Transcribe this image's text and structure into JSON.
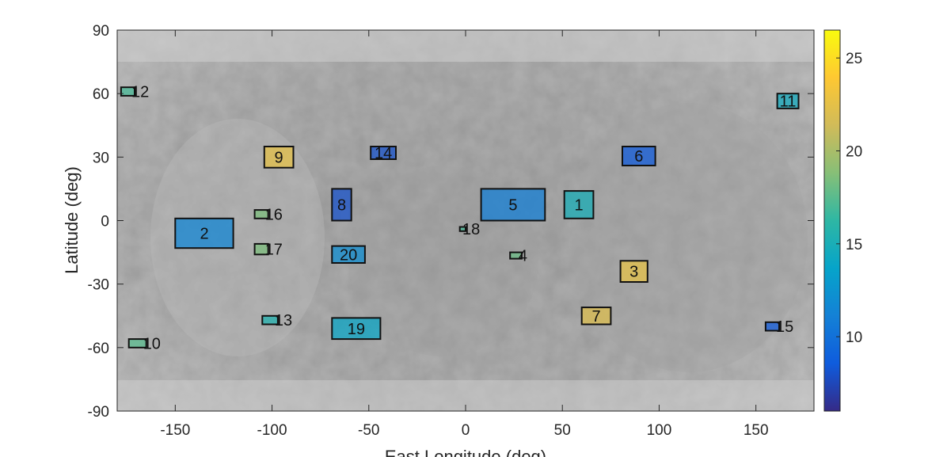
{
  "chart_data": {
    "type": "heatmap",
    "title": "",
    "xlabel": "East Longitude (deg)",
    "ylabel": "Latitude (deg)",
    "xlim": [
      -180,
      180
    ],
    "ylim": [
      -90,
      90
    ],
    "xticks": [
      -150,
      -100,
      -50,
      0,
      50,
      100,
      150
    ],
    "yticks": [
      90,
      60,
      30,
      0,
      -30,
      -60,
      -90
    ],
    "background": "grayscale planetary basemap",
    "grid": false,
    "colorbar": {
      "min": 6,
      "max": 26.5,
      "ticks": [
        10,
        15,
        20,
        25
      ],
      "colormap": "parula",
      "position": "right"
    },
    "regions": [
      {
        "label": "1",
        "lon": [
          51,
          66
        ],
        "lat": [
          1,
          14
        ],
        "value": 15.0
      },
      {
        "label": "2",
        "lon": [
          -150,
          -120
        ],
        "lat": [
          -13,
          1
        ],
        "value": 11.5
      },
      {
        "label": "3",
        "lon": [
          80,
          94
        ],
        "lat": [
          -29,
          -19
        ],
        "value": 22.5
      },
      {
        "label": "4",
        "lon": [
          23,
          29
        ],
        "lat": [
          -18,
          -15
        ],
        "value": 18.0
      },
      {
        "label": "5",
        "lon": [
          8,
          41
        ],
        "lat": [
          0,
          15
        ],
        "value": 11.0
      },
      {
        "label": "6",
        "lon": [
          81,
          98
        ],
        "lat": [
          26,
          35
        ],
        "value": 8.5
      },
      {
        "label": "7",
        "lon": [
          60,
          75
        ],
        "lat": [
          -49,
          -41
        ],
        "value": 22.0
      },
      {
        "label": "8",
        "lon": [
          -69,
          -59
        ],
        "lat": [
          0,
          15
        ],
        "value": 8.0
      },
      {
        "label": "9",
        "lon": [
          -104,
          -89
        ],
        "lat": [
          25,
          35
        ],
        "value": 22.5
      },
      {
        "label": "10",
        "lon": [
          -174,
          -165
        ],
        "lat": [
          -60,
          -56
        ],
        "value": 17.5
      },
      {
        "label": "11",
        "lon": [
          161,
          172
        ],
        "lat": [
          53,
          60
        ],
        "value": 14.5
      },
      {
        "label": "12",
        "lon": [
          -178,
          -171
        ],
        "lat": [
          59,
          63
        ],
        "value": 17.0
      },
      {
        "label": "13",
        "lon": [
          -105,
          -97
        ],
        "lat": [
          -49,
          -45
        ],
        "value": 15.5
      },
      {
        "label": "14",
        "lon": [
          -49,
          -36
        ],
        "lat": [
          29,
          35
        ],
        "value": 8.0
      },
      {
        "label": "15",
        "lon": [
          155,
          162
        ],
        "lat": [
          -52,
          -48
        ],
        "value": 8.5
      },
      {
        "label": "16",
        "lon": [
          -109,
          -102
        ],
        "lat": [
          1,
          5
        ],
        "value": 18.5
      },
      {
        "label": "17",
        "lon": [
          -109,
          -102
        ],
        "lat": [
          -16,
          -11
        ],
        "value": 18.5
      },
      {
        "label": "18",
        "lon": [
          -3,
          0
        ],
        "lat": [
          -5,
          -3
        ],
        "value": 17.0
      },
      {
        "label": "19",
        "lon": [
          -69,
          -44
        ],
        "lat": [
          -56,
          -46
        ],
        "value": 14.0
      },
      {
        "label": "20",
        "lon": [
          -69,
          -52
        ],
        "lat": [
          -20,
          -12
        ],
        "value": 12.0
      }
    ]
  }
}
